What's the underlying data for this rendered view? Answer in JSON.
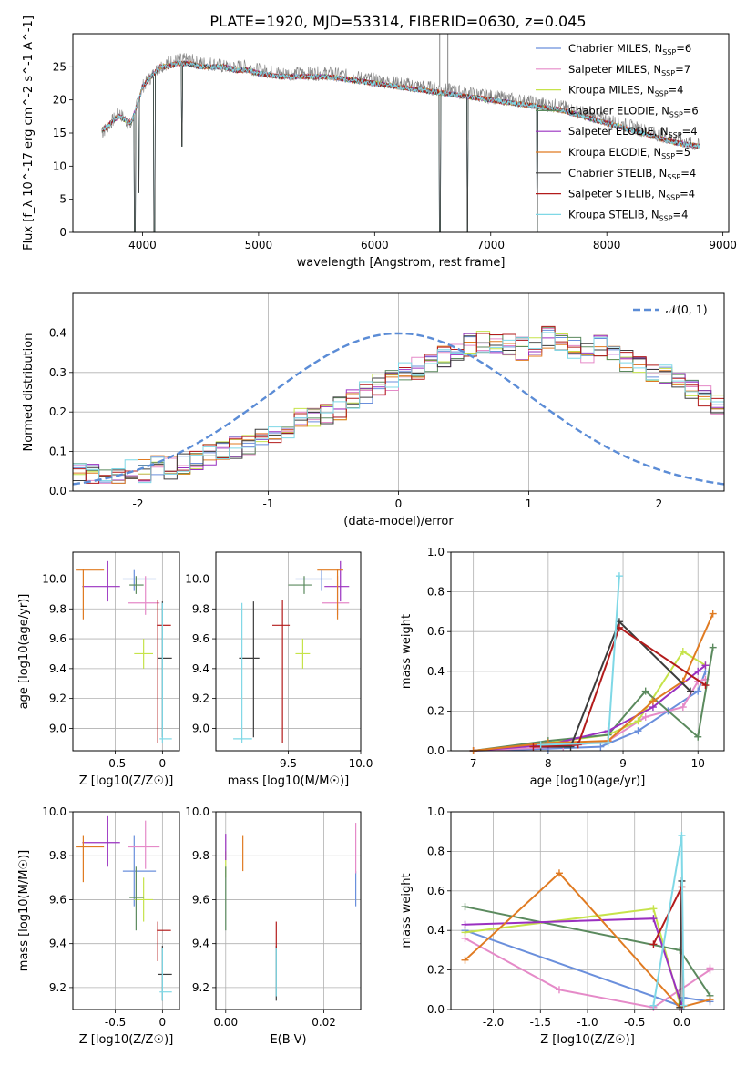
{
  "figure": {
    "title": "PLATE=1920, MJD=53314, FIBERID=0630, z=0.045"
  },
  "legend_labels": [
    "Chabrier MILES, N_SSP=6",
    "Salpeter MILES, N_SSP=7",
    "Kroupa MILES, N_SSP=4",
    "Chabrier ELODIE, N_SSP=6",
    "Salpeter ELODIE, N_SSP=4",
    "Kroupa ELODIE, N_SSP=5",
    "Chabrier STELIB, N_SSP=4",
    "Salpeter STELIB, N_SSP=4",
    "Kroupa STELIB, N_SSP=4"
  ],
  "models": [
    {
      "name": "Chabrier MILES",
      "color": "#6a8fdc",
      "age": 10.0,
      "age_lo": 9.92,
      "age_hi": 10.06,
      "Z": -0.3,
      "Z_lo": -0.42,
      "Z_hi": -0.07,
      "mass": 9.73,
      "mass_lo": 9.57,
      "mass_hi": 9.89,
      "mass_xlo": 9.55,
      "mass_xhi": 9.8,
      "ebv": 0.0265,
      "ebv_lo": 9.57,
      "ebv_hi": 9.73
    },
    {
      "name": "Salpeter MILES",
      "color": "#e58ac8",
      "age": 9.84,
      "age_lo": 9.76,
      "age_hi": 10.02,
      "Z": -0.18,
      "Z_lo": -0.37,
      "Z_hi": -0.03,
      "mass": 9.84,
      "mass_lo": 9.74,
      "mass_hi": 9.96,
      "mass_xlo": 9.73,
      "mass_xhi": 9.92,
      "ebv": 0.0265,
      "ebv_lo": 9.72,
      "ebv_hi": 9.95
    },
    {
      "name": "Kroupa MILES",
      "color": "#c6e34a",
      "age": 9.5,
      "age_lo": 9.4,
      "age_hi": 9.6,
      "Z": -0.2,
      "Z_lo": -0.3,
      "Z_hi": -0.1,
      "mass": 9.6,
      "mass_lo": 9.5,
      "mass_hi": 9.7,
      "mass_xlo": 9.55,
      "mass_xhi": 9.65,
      "ebv": 0.0,
      "ebv_lo": 9.7,
      "ebv_hi": 9.82
    },
    {
      "name": "Chabrier ELODIE",
      "color": "#5b8a5e",
      "age": 9.96,
      "age_lo": 9.9,
      "age_hi": 10.02,
      "Z": -0.28,
      "Z_lo": -0.35,
      "Z_hi": -0.2,
      "mass": 9.61,
      "mass_lo": 9.46,
      "mass_hi": 9.75,
      "mass_xlo": 9.5,
      "mass_xhi": 9.66,
      "ebv": 0.0,
      "ebv_lo": 9.46,
      "ebv_hi": 9.75
    },
    {
      "name": "Salpeter ELODIE",
      "color": "#9a30c0",
      "age": 9.95,
      "age_lo": 9.85,
      "age_hi": 10.12,
      "Z": -0.58,
      "Z_lo": -0.85,
      "Z_hi": -0.45,
      "mass": 9.86,
      "mass_lo": 9.75,
      "mass_hi": 9.98,
      "mass_xlo": 9.75,
      "mass_xhi": 9.92,
      "ebv": 0.0,
      "ebv_lo": 9.78,
      "ebv_hi": 9.9
    },
    {
      "name": "Kroupa ELODIE",
      "color": "#e07b22",
      "age": 10.06,
      "age_lo": 9.73,
      "age_hi": 10.07,
      "Z": -0.84,
      "Z_lo": -0.92,
      "Z_hi": -0.62,
      "mass": 9.84,
      "mass_lo": 9.68,
      "mass_hi": 9.89,
      "mass_xlo": 9.7,
      "mass_xhi": 9.88,
      "ebv": 0.0035,
      "ebv_lo": 9.73,
      "ebv_hi": 9.89
    },
    {
      "name": "Chabrier STELIB",
      "color": "#3c3c3c",
      "age": 9.47,
      "age_lo": 8.94,
      "age_hi": 9.85,
      "Z": 0.0,
      "Z_lo": -0.05,
      "Z_hi": 0.1,
      "mass": 9.26,
      "mass_lo": 9.14,
      "mass_hi": 9.39,
      "mass_xlo": 9.16,
      "mass_xhi": 9.3,
      "ebv": 0.0103,
      "ebv_lo": 9.14,
      "ebv_hi": 9.39
    },
    {
      "name": "Salpeter STELIB",
      "color": "#b31b1b",
      "age": 9.69,
      "age_lo": 8.9,
      "age_hi": 9.86,
      "Z": -0.05,
      "Z_lo": -0.06,
      "Z_hi": 0.09,
      "mass": 9.46,
      "mass_lo": 9.32,
      "mass_hi": 9.5,
      "mass_xlo": 9.39,
      "mass_xhi": 9.51,
      "ebv": 0.0103,
      "ebv_lo": 9.38,
      "ebv_hi": 9.5
    },
    {
      "name": "Kroupa STELIB",
      "color": "#7fd8e6",
      "age": 8.93,
      "age_lo": 8.9,
      "age_hi": 9.84,
      "Z": 0.0,
      "Z_lo": -0.03,
      "Z_hi": 0.1,
      "mass": 9.18,
      "mass_lo": 9.14,
      "mass_hi": 9.38,
      "mass_xlo": 9.12,
      "mass_xhi": 9.25,
      "ebv": 0.0103,
      "ebv_lo": 9.16,
      "ebv_hi": 9.38
    }
  ],
  "chart_data": [
    {
      "id": "spectrum",
      "type": "line",
      "title": "PLATE=1920, MJD=53314, FIBERID=0630, z=0.045",
      "xlabel": "wavelength [Angstrom, rest frame]",
      "ylabel": "Flux [f_λ 10^-17 erg cm^-2 s^-1 A^-1]",
      "xlim": [
        3400,
        9050
      ],
      "ylim": [
        0,
        30
      ],
      "xticks": [
        4000,
        5000,
        6000,
        7000,
        8000,
        9000
      ],
      "yticks": [
        0,
        5,
        10,
        15,
        20,
        25
      ],
      "x": [
        3650,
        3700,
        3750,
        3800,
        3850,
        3900,
        3950,
        4000,
        4050,
        4100,
        4150,
        4200,
        4300,
        4400,
        4500,
        4600,
        4700,
        4800,
        4900,
        5000,
        5200,
        5400,
        5600,
        5800,
        6000,
        6200,
        6400,
        6600,
        6800,
        7000,
        7200,
        7400,
        7600,
        7800,
        8000,
        8200,
        8400,
        8600,
        8800
      ],
      "series": [
        {
          "name": "Observed",
          "values": [
            15,
            16,
            17,
            18,
            17,
            16,
            19,
            22,
            23,
            24,
            25,
            25.5,
            26,
            26,
            25.5,
            25.5,
            25,
            25,
            25,
            24.5,
            24,
            24,
            24,
            23.5,
            23,
            22.5,
            22,
            21.5,
            21,
            20.5,
            20,
            19.5,
            19,
            18,
            17,
            16,
            15,
            14,
            13
          ]
        },
        {
          "name": "Model",
          "values": [
            15.5,
            16,
            17,
            17.5,
            17,
            16.5,
            19,
            22,
            23,
            24,
            25,
            25,
            25.5,
            25.5,
            25,
            25,
            25,
            24.5,
            24.5,
            24,
            23.5,
            23.5,
            23.5,
            23,
            22.5,
            22,
            21.5,
            21,
            20.5,
            20,
            19.5,
            19,
            18.5,
            17.5,
            16.5,
            15.5,
            14.5,
            13.5,
            13
          ]
        }
      ],
      "absorption_dips": [
        {
          "x": 3933,
          "depth": 0
        },
        {
          "x": 3968,
          "depth": 6
        },
        {
          "x": 4102,
          "depth": 0
        },
        {
          "x": 4340,
          "depth": 13
        },
        {
          "x": 6563,
          "depth": 0
        },
        {
          "x": 6800,
          "depth": 0
        },
        {
          "x": 7400,
          "depth": 0
        }
      ],
      "legend": "top-right"
    },
    {
      "id": "residuals",
      "type": "histogram",
      "xlabel": "(data-model)/error",
      "ylabel": "Normed distribution",
      "xlim": [
        -2.5,
        2.5
      ],
      "ylim": [
        0,
        0.5
      ],
      "xticks": [
        -2,
        -1,
        0,
        1,
        2
      ],
      "yticks": [
        0.0,
        0.1,
        0.2,
        0.3,
        0.4
      ],
      "legend_label": "𝒩(0, 1)",
      "bin_width": 0.1,
      "bins_start": -2.5,
      "values": [
        0.05,
        0.04,
        0.035,
        0.04,
        0.05,
        0.05,
        0.06,
        0.06,
        0.07,
        0.08,
        0.09,
        0.1,
        0.11,
        0.12,
        0.13,
        0.15,
        0.16,
        0.18,
        0.19,
        0.2,
        0.21,
        0.23,
        0.25,
        0.27,
        0.28,
        0.3,
        0.31,
        0.33,
        0.34,
        0.36,
        0.37,
        0.38,
        0.38,
        0.37,
        0.36,
        0.37,
        0.39,
        0.38,
        0.36,
        0.35,
        0.37,
        0.34,
        0.33,
        0.31,
        0.3,
        0.29,
        0.27,
        0.26,
        0.24,
        0.22
      ]
    },
    {
      "id": "age-vs-Z",
      "type": "scatter",
      "xlabel": "Z [log10(Z/Z☉)]",
      "ylabel": "age [log10(age/yr)]",
      "xlim": [
        -0.95,
        0.18
      ],
      "ylim": [
        8.85,
        10.18
      ],
      "xticks": [
        -0.5,
        0.0
      ],
      "yticks": [
        9.0,
        9.2,
        9.4,
        9.6,
        9.8,
        10.0
      ]
    },
    {
      "id": "age-vs-mass",
      "type": "scatter",
      "xlabel": "mass [log10(M/M☉)]",
      "ylabel": "",
      "xlim": [
        9.0,
        10.0
      ],
      "ylim": [
        8.85,
        10.18
      ],
      "xticks": [
        9.5,
        10.0
      ],
      "yticks": [
        9.0,
        9.2,
        9.4,
        9.6,
        9.8,
        10.0
      ]
    },
    {
      "id": "massweight-vs-age",
      "type": "line",
      "xlabel": "age [log10(age/yr)]",
      "ylabel": "mass weight",
      "xlim": [
        6.7,
        10.35
      ],
      "ylim": [
        0,
        1.0
      ],
      "xticks": [
        7,
        8,
        9,
        10
      ],
      "yticks": [
        0.0,
        0.2,
        0.4,
        0.6,
        0.8,
        1.0
      ],
      "series": [
        {
          "name": "Chabrier MILES",
          "x": [
            7.0,
            8.0,
            8.7,
            9.2,
            9.6,
            10.0,
            10.1
          ],
          "values": [
            0.0,
            0.01,
            0.02,
            0.1,
            0.2,
            0.3,
            0.4
          ]
        },
        {
          "name": "Salpeter MILES",
          "x": [
            7.0,
            8.2,
            8.8,
            9.3,
            9.8,
            10.0,
            10.1
          ],
          "values": [
            0.0,
            0.02,
            0.05,
            0.17,
            0.22,
            0.35,
            0.36
          ]
        },
        {
          "name": "Kroupa MILES",
          "x": [
            7.0,
            8.0,
            8.8,
            9.2,
            9.8,
            10.1
          ],
          "values": [
            0.0,
            0.04,
            0.08,
            0.15,
            0.5,
            0.43
          ]
        },
        {
          "name": "Chabrier ELODIE",
          "x": [
            7.0,
            8.0,
            8.8,
            9.3,
            10.0,
            10.2
          ],
          "values": [
            0.0,
            0.05,
            0.08,
            0.3,
            0.07,
            0.52
          ]
        },
        {
          "name": "Salpeter ELODIE",
          "x": [
            7.0,
            8.0,
            8.8,
            9.4,
            10.0,
            10.1
          ],
          "values": [
            0.0,
            0.03,
            0.1,
            0.22,
            0.4,
            0.43
          ]
        },
        {
          "name": "Kroupa ELODIE",
          "x": [
            7.0,
            8.0,
            8.8,
            9.4,
            9.8,
            10.2
          ],
          "values": [
            0.0,
            0.04,
            0.05,
            0.25,
            0.35,
            0.69
          ]
        },
        {
          "name": "Chabrier STELIB",
          "x": [
            7.9,
            8.3,
            8.95,
            9.9
          ],
          "values": [
            0.02,
            0.02,
            0.65,
            0.3
          ]
        },
        {
          "name": "Salpeter STELIB",
          "x": [
            7.8,
            8.4,
            8.95,
            10.1
          ],
          "values": [
            0.02,
            0.03,
            0.62,
            0.33
          ]
        },
        {
          "name": "Kroupa STELIB",
          "x": [
            7.9,
            8.8,
            8.95
          ],
          "values": [
            0.03,
            0.04,
            0.88
          ]
        }
      ]
    },
    {
      "id": "mass-vs-Z",
      "type": "scatter",
      "xlabel": "Z [log10(Z/Z☉)]",
      "ylabel": "mass [log10(M/M☉)]",
      "xlim": [
        -0.95,
        0.18
      ],
      "ylim": [
        9.1,
        10.0
      ],
      "xticks": [
        -0.5,
        0.0
      ],
      "yticks": [
        9.2,
        9.4,
        9.6,
        9.8,
        10.0
      ]
    },
    {
      "id": "mass-vs-ebv",
      "type": "scatter",
      "xlabel": "E(B-V)",
      "ylabel": "",
      "xlim": [
        -0.002,
        0.0275
      ],
      "ylim": [
        9.1,
        10.0
      ],
      "xticks": [
        0.0,
        0.02
      ],
      "yticks": [
        9.2,
        9.4,
        9.6,
        9.8,
        10.0
      ]
    },
    {
      "id": "massweight-vs-Z",
      "type": "line",
      "xlabel": "Z [log10(Z/Z☉)]",
      "ylabel": "mass weight",
      "xlim": [
        -2.45,
        0.45
      ],
      "ylim": [
        0,
        1.0
      ],
      "xticks": [
        -2.0,
        -1.5,
        -1.0,
        -0.5,
        0.0
      ],
      "yticks": [
        0.0,
        0.2,
        0.4,
        0.6,
        0.8,
        1.0
      ],
      "series": [
        {
          "name": "Chabrier MILES",
          "x": [
            -2.3,
            -0.02,
            0.02,
            0.3
          ],
          "values": [
            0.4,
            0.02,
            0.06,
            0.04
          ]
        },
        {
          "name": "Salpeter MILES",
          "x": [
            -2.3,
            -1.3,
            -0.3,
            0.3,
            0.3
          ],
          "values": [
            0.36,
            0.1,
            0.01,
            0.2,
            0.21
          ]
        },
        {
          "name": "Kroupa MILES",
          "x": [
            -2.3,
            -0.3,
            -0.02
          ],
          "values": [
            0.39,
            0.51,
            0.03
          ]
        },
        {
          "name": "Chabrier ELODIE",
          "x": [
            -2.3,
            -0.02,
            0.3
          ],
          "values": [
            0.52,
            0.3,
            0.07
          ]
        },
        {
          "name": "Salpeter ELODIE",
          "x": [
            -2.3,
            -0.3,
            0.0
          ],
          "values": [
            0.43,
            0.46,
            0.02
          ]
        },
        {
          "name": "Kroupa ELODIE",
          "x": [
            -2.3,
            -1.3,
            -0.02,
            0.3
          ],
          "values": [
            0.25,
            0.69,
            0.01,
            0.05
          ]
        },
        {
          "name": "Chabrier STELIB",
          "x": [
            -0.02,
            0.0
          ],
          "values": [
            0.01,
            0.65
          ]
        },
        {
          "name": "Salpeter STELIB",
          "x": [
            -0.3,
            0.0,
            0.02
          ],
          "values": [
            0.33,
            0.62,
            0.02
          ]
        },
        {
          "name": "Kroupa STELIB",
          "x": [
            -0.3,
            0.0,
            0.02
          ],
          "values": [
            0.02,
            0.88,
            0.02
          ]
        }
      ]
    }
  ]
}
